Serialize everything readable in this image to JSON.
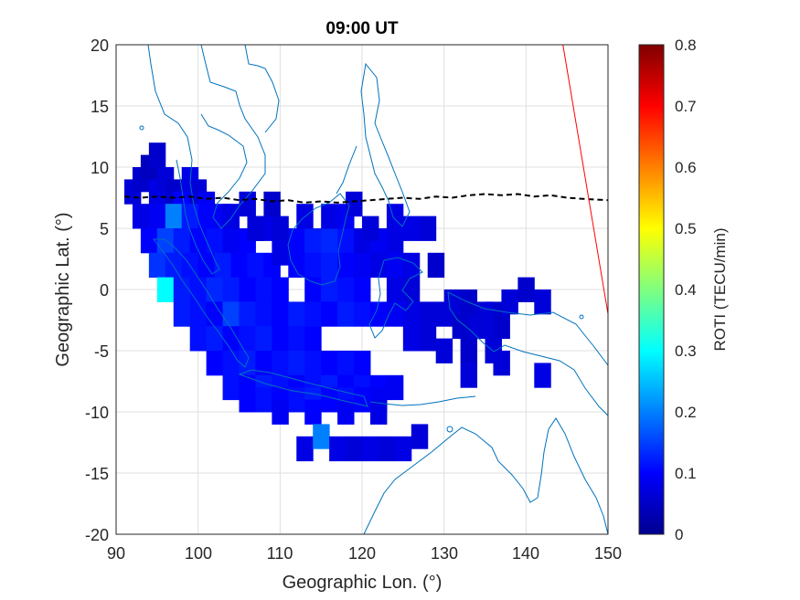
{
  "chart_data": {
    "type": "heatmap",
    "title": "09:00 UT",
    "xlabel": "Geographic Lon. (°)",
    "ylabel": "Geographic Lat. (°)",
    "xlim": [
      90,
      150
    ],
    "ylim": [
      -20,
      20
    ],
    "xticks": [
      "90",
      "100",
      "110",
      "120",
      "130",
      "140",
      "150"
    ],
    "yticks": [
      "20",
      "15",
      "10",
      "5",
      "0",
      "-5",
      "-10",
      "-15",
      "-20"
    ],
    "grid": true,
    "colorbar": {
      "label": "ROTI (TECU/min)",
      "range": [
        0,
        0.8
      ],
      "ticks": [
        "0",
        "0.1",
        "0.2",
        "0.3",
        "0.4",
        "0.5",
        "0.6",
        "0.7",
        "0.8"
      ],
      "colormap": "jet"
    },
    "colors": {
      "coastline": "#0072BD",
      "equator_line": "#000000",
      "terminator_line": "#FF0000"
    },
    "magnetic_equator": [
      [
        91,
        7.6
      ],
      [
        93,
        7.5
      ],
      [
        95,
        7.6
      ],
      [
        97,
        7.5
      ],
      [
        99,
        7.6
      ],
      [
        101,
        7.4
      ],
      [
        103,
        7.5
      ],
      [
        105,
        7.3
      ],
      [
        107,
        7.4
      ],
      [
        109,
        7.2
      ],
      [
        111,
        7.3
      ],
      [
        113,
        7.1
      ],
      [
        115,
        7.2
      ],
      [
        117,
        7.1
      ],
      [
        119,
        7.2
      ],
      [
        121,
        7.3
      ],
      [
        123,
        7.4
      ],
      [
        125,
        7.5
      ],
      [
        127,
        7.4
      ],
      [
        129,
        7.6
      ],
      [
        131,
        7.5
      ],
      [
        133,
        7.7
      ],
      [
        135,
        7.8
      ],
      [
        137,
        7.7
      ],
      [
        139,
        7.8
      ],
      [
        141,
        7.6
      ],
      [
        143,
        7.7
      ],
      [
        145,
        7.5
      ],
      [
        147,
        7.4
      ],
      [
        150,
        7.3
      ]
    ],
    "terminator": [
      [
        144.5,
        20
      ],
      [
        150,
        -2
      ]
    ],
    "roti_cells": [
      [
        92,
        8,
        0.07
      ],
      [
        93,
        9,
        0.06
      ],
      [
        94,
        10,
        0.05
      ],
      [
        95,
        11,
        0.06
      ],
      [
        95,
        8,
        0.08
      ],
      [
        96,
        9,
        0.07
      ],
      [
        97,
        8,
        0.06
      ],
      [
        98,
        7,
        0.1
      ],
      [
        99,
        9,
        0.08
      ],
      [
        100,
        8,
        0.07
      ],
      [
        101,
        7,
        0.09
      ],
      [
        93,
        6,
        0.08
      ],
      [
        95,
        6,
        0.09
      ],
      [
        97,
        6,
        0.2
      ],
      [
        99,
        6,
        0.12
      ],
      [
        101,
        6,
        0.1
      ],
      [
        103,
        6,
        0.09
      ],
      [
        94,
        4,
        0.1
      ],
      [
        96,
        4,
        0.15
      ],
      [
        98,
        4,
        0.12
      ],
      [
        100,
        4,
        0.1
      ],
      [
        102,
        4,
        0.11
      ],
      [
        104,
        4,
        0.09
      ],
      [
        106,
        4,
        0.1
      ],
      [
        95,
        2,
        0.14
      ],
      [
        97,
        2,
        0.12
      ],
      [
        99,
        2,
        0.11
      ],
      [
        101,
        2,
        0.1
      ],
      [
        103,
        2,
        0.12
      ],
      [
        105,
        2,
        0.1
      ],
      [
        107,
        2,
        0.11
      ],
      [
        109,
        2,
        0.1
      ],
      [
        96,
        0,
        0.3
      ],
      [
        98,
        0,
        0.12
      ],
      [
        100,
        0,
        0.11
      ],
      [
        102,
        0,
        0.13
      ],
      [
        104,
        0,
        0.12
      ],
      [
        106,
        0,
        0.1
      ],
      [
        108,
        0,
        0.11
      ],
      [
        110,
        0,
        0.1
      ],
      [
        98,
        -2,
        0.12
      ],
      [
        100,
        -2,
        0.11
      ],
      [
        102,
        -2,
        0.1
      ],
      [
        104,
        -2,
        0.15
      ],
      [
        106,
        -2,
        0.12
      ],
      [
        108,
        -2,
        0.11
      ],
      [
        110,
        -2,
        0.1
      ],
      [
        112,
        -2,
        0.12
      ],
      [
        100,
        -4,
        0.11
      ],
      [
        102,
        -4,
        0.12
      ],
      [
        104,
        -4,
        0.1
      ],
      [
        106,
        -4,
        0.11
      ],
      [
        108,
        -4,
        0.12
      ],
      [
        110,
        -4,
        0.1
      ],
      [
        112,
        -4,
        0.11
      ],
      [
        114,
        -4,
        0.1
      ],
      [
        102,
        -6,
        0.1
      ],
      [
        104,
        -6,
        0.11
      ],
      [
        106,
        -6,
        0.12
      ],
      [
        108,
        -6,
        0.1
      ],
      [
        110,
        -6,
        0.11
      ],
      [
        112,
        -6,
        0.12
      ],
      [
        114,
        -6,
        0.11
      ],
      [
        116,
        -6,
        0.1
      ],
      [
        118,
        -6,
        0.11
      ],
      [
        120,
        -6,
        0.1
      ],
      [
        104,
        -8,
        0.11
      ],
      [
        106,
        -8,
        0.1
      ],
      [
        108,
        -8,
        0.12
      ],
      [
        110,
        -8,
        0.11
      ],
      [
        112,
        -8,
        0.1
      ],
      [
        114,
        -8,
        0.11
      ],
      [
        116,
        -8,
        0.12
      ],
      [
        118,
        -8,
        0.1
      ],
      [
        120,
        -8,
        0.11
      ],
      [
        122,
        -8,
        0.1
      ],
      [
        124,
        -8,
        0.09
      ],
      [
        106,
        -9,
        0.1
      ],
      [
        108,
        -9,
        0.11
      ],
      [
        110,
        -9,
        0.1
      ],
      [
        112,
        -9,
        0.11
      ],
      [
        114,
        -9,
        0.12
      ],
      [
        116,
        -9,
        0.1
      ],
      [
        118,
        -9,
        0.11
      ],
      [
        120,
        -9,
        0.1
      ],
      [
        122,
        -9,
        0.09
      ],
      [
        110,
        -10,
        0.09
      ],
      [
        114,
        -10,
        0.1
      ],
      [
        118,
        -10,
        0.09
      ],
      [
        122,
        -10,
        0.08
      ],
      [
        112,
        4,
        0.1
      ],
      [
        114,
        4,
        0.12
      ],
      [
        116,
        4,
        0.13
      ],
      [
        118,
        4,
        0.11
      ],
      [
        112,
        2,
        0.1
      ],
      [
        114,
        2,
        0.11
      ],
      [
        116,
        2,
        0.12
      ],
      [
        118,
        2,
        0.1
      ],
      [
        120,
        2,
        0.09
      ],
      [
        114,
        0,
        0.1
      ],
      [
        116,
        0,
        0.12
      ],
      [
        118,
        0,
        0.11
      ],
      [
        120,
        0,
        0.1
      ],
      [
        114,
        -2,
        0.11
      ],
      [
        116,
        -2,
        0.1
      ],
      [
        118,
        -2,
        0.12
      ],
      [
        120,
        -2,
        0.11
      ],
      [
        122,
        -2,
        0.1
      ],
      [
        116,
        6,
        0.08
      ],
      [
        118,
        6,
        0.09
      ],
      [
        120,
        4,
        0.08
      ],
      [
        122,
        4,
        0.09
      ],
      [
        124,
        4,
        0.08
      ],
      [
        122,
        2,
        0.08
      ],
      [
        124,
        2,
        0.09
      ],
      [
        126,
        2,
        0.08
      ],
      [
        124,
        0,
        0.08
      ],
      [
        126,
        0,
        0.07
      ],
      [
        124,
        -2,
        0.09
      ],
      [
        126,
        -2,
        0.08
      ],
      [
        128,
        -2,
        0.07
      ],
      [
        126,
        -4,
        0.08
      ],
      [
        128,
        -4,
        0.07
      ],
      [
        130,
        -2,
        0.07
      ],
      [
        132,
        -3,
        0.06
      ],
      [
        134,
        -3,
        0.07
      ],
      [
        136,
        -2,
        0.06
      ],
      [
        130,
        -5,
        0.07
      ],
      [
        133,
        -5,
        0.06
      ],
      [
        136,
        -4,
        0.07
      ],
      [
        113,
        -13,
        0.08
      ],
      [
        115,
        -12,
        0.2
      ],
      [
        117,
        -13,
        0.08
      ],
      [
        119,
        -13,
        0.07
      ],
      [
        121,
        -13,
        0.08
      ],
      [
        123,
        -13,
        0.07
      ],
      [
        125,
        -13,
        0.08
      ],
      [
        127,
        -12,
        0.07
      ],
      [
        109,
        7,
        0.06
      ],
      [
        119,
        7,
        0.07
      ],
      [
        124,
        6,
        0.08
      ],
      [
        126,
        5,
        0.08
      ],
      [
        128,
        5,
        0.07
      ],
      [
        129,
        2,
        0.06
      ],
      [
        131,
        -1,
        0.07
      ],
      [
        133,
        -1,
        0.06
      ],
      [
        135,
        -2,
        0.07
      ],
      [
        137,
        -3,
        0.06
      ],
      [
        138,
        -1,
        0.07
      ],
      [
        140,
        0,
        0.06
      ],
      [
        142,
        -1,
        0.07
      ],
      [
        137,
        -6,
        0.07
      ],
      [
        142,
        -7,
        0.08
      ],
      [
        133,
        -7,
        0.07
      ],
      [
        136,
        -5,
        0.07
      ],
      [
        104,
        6,
        0.08
      ],
      [
        106,
        7,
        0.07
      ],
      [
        108,
        5,
        0.08
      ],
      [
        110,
        5,
        0.07
      ],
      [
        110,
        3,
        0.08
      ],
      [
        107,
        5,
        0.07
      ],
      [
        113,
        6,
        0.08
      ],
      [
        121,
        5,
        0.07
      ]
    ]
  }
}
